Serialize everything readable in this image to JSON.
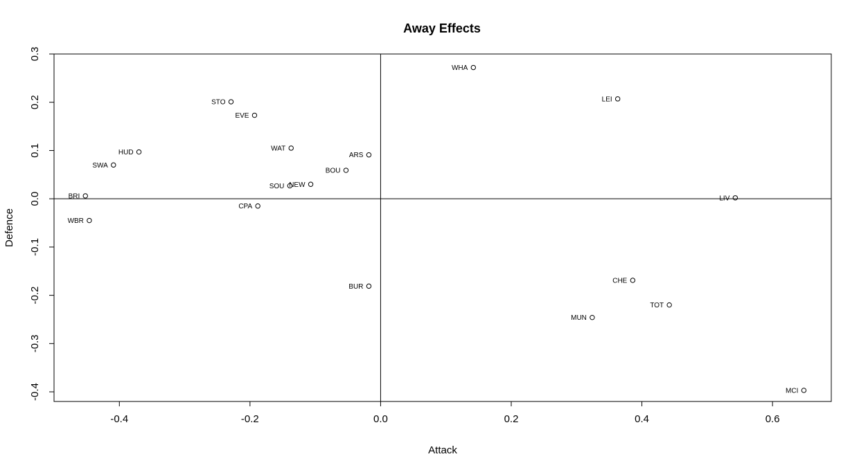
{
  "chart_data": {
    "type": "scatter",
    "title": "Away Effects",
    "xlabel": "Attack",
    "ylabel": "Defence",
    "xlim": [
      -0.5,
      0.69
    ],
    "ylim": [
      -0.42,
      0.3
    ],
    "x_ticks": [
      -0.4,
      -0.2,
      0.0,
      0.2,
      0.4,
      0.6
    ],
    "x_tick_labels": [
      "-0.4",
      "-0.2",
      "0.0",
      "0.2",
      "0.4",
      "0.6"
    ],
    "y_ticks": [
      -0.4,
      -0.3,
      -0.2,
      -0.1,
      0.0,
      0.1,
      0.2,
      0.3
    ],
    "y_tick_labels": [
      "-0.4",
      "-0.3",
      "-0.2",
      "-0.1",
      "0.0",
      "0.1",
      "0.2",
      "0.3"
    ],
    "reference_lines": {
      "x": 0.0,
      "y": 0.0
    },
    "grid": false,
    "points": [
      {
        "label": "WHA",
        "x": 0.142,
        "y": 0.272
      },
      {
        "label": "LEI",
        "x": 0.363,
        "y": 0.207
      },
      {
        "label": "STO",
        "x": -0.229,
        "y": 0.201
      },
      {
        "label": "EVE",
        "x": -0.193,
        "y": 0.173
      },
      {
        "label": "WAT",
        "x": -0.137,
        "y": 0.105
      },
      {
        "label": "HUD",
        "x": -0.37,
        "y": 0.097
      },
      {
        "label": "ARS",
        "x": -0.018,
        "y": 0.091
      },
      {
        "label": "SWA",
        "x": -0.409,
        "y": 0.07
      },
      {
        "label": "BOU",
        "x": -0.053,
        "y": 0.059
      },
      {
        "label": "NEW",
        "x": -0.107,
        "y": 0.03
      },
      {
        "label": "SOU",
        "x": -0.139,
        "y": 0.027
      },
      {
        "label": "BRI",
        "x": -0.452,
        "y": 0.006
      },
      {
        "label": "LIV",
        "x": 0.543,
        "y": 0.002
      },
      {
        "label": "CPA",
        "x": -0.188,
        "y": -0.015
      },
      {
        "label": "WBR",
        "x": -0.446,
        "y": -0.045
      },
      {
        "label": "BUR",
        "x": -0.018,
        "y": -0.181
      },
      {
        "label": "CHE",
        "x": 0.386,
        "y": -0.169
      },
      {
        "label": "TOT",
        "x": 0.442,
        "y": -0.22
      },
      {
        "label": "MUN",
        "x": 0.324,
        "y": -0.246
      },
      {
        "label": "MCI",
        "x": 0.648,
        "y": -0.397
      }
    ]
  }
}
